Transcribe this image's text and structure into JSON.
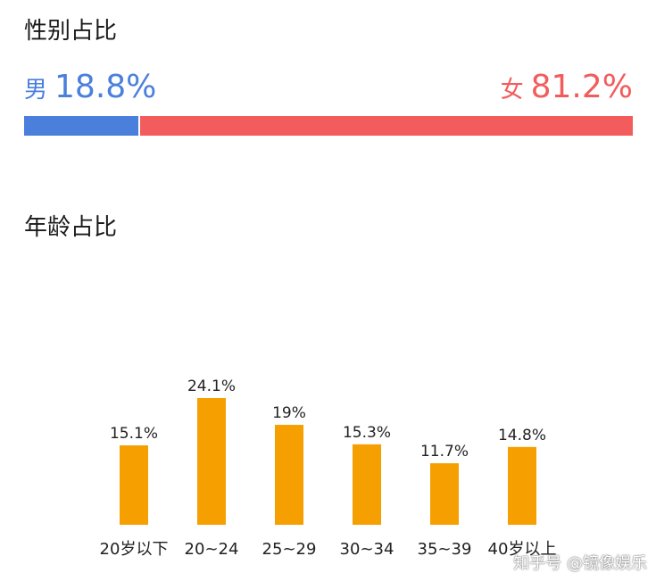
{
  "gender": {
    "title": "性别占比",
    "male": {
      "label": "男",
      "value_text": "18.8%",
      "value": 18.8,
      "color": "#4a7fdc"
    },
    "female": {
      "label": "女",
      "value_text": "81.2%",
      "value": 81.2,
      "color": "#f25c5c"
    }
  },
  "age": {
    "title": "年龄占比",
    "bar_color": "#f5a000"
  },
  "chart_data": [
    {
      "type": "bar",
      "title": "性别占比",
      "orientation": "horizontal-stacked",
      "categories": [
        "男",
        "女"
      ],
      "values": [
        18.8,
        81.2
      ],
      "colors": [
        "#4a7fdc",
        "#f25c5c"
      ]
    },
    {
      "type": "bar",
      "title": "年龄占比",
      "categories": [
        "20岁以下",
        "20~24",
        "25~29",
        "30~34",
        "35~39",
        "40岁以上"
      ],
      "values": [
        15.1,
        24.1,
        19,
        15.3,
        11.7,
        14.8
      ],
      "value_labels": [
        "15.1%",
        "24.1%",
        "19%",
        "15.3%",
        "11.7%",
        "14.8%"
      ],
      "ylim": [
        0,
        24.1
      ],
      "grid": false
    }
  ],
  "watermark": "知乎号 @镜像娱乐"
}
